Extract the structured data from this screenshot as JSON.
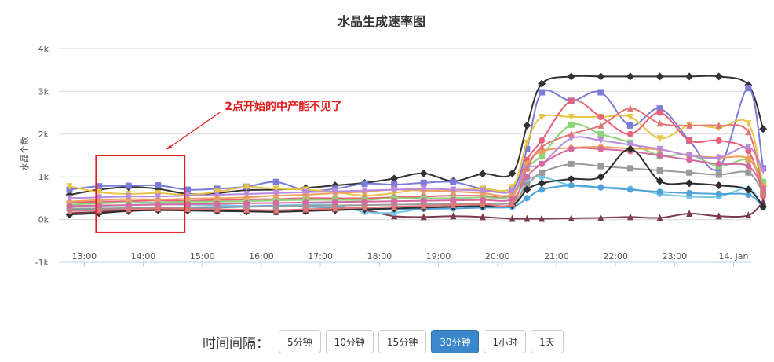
{
  "chart_data": {
    "type": "line",
    "title": "水晶生成速率图",
    "ylabel": "水晶个数",
    "xlabel": "",
    "ylim": [
      -1000,
      4000
    ],
    "y_ticks": [
      -1000,
      0,
      1000,
      2000,
      3000,
      4000
    ],
    "y_tick_labels": [
      "-1k",
      "0k",
      "1k",
      "2k",
      "3k",
      "4k"
    ],
    "x_tick_labels": [
      "13:00",
      "14:00",
      "15:00",
      "16:00",
      "17:00",
      "18:00",
      "19:00",
      "20:00",
      "21:00",
      "22:00",
      "23:00",
      "14. Jan"
    ],
    "x_tick_hours": [
      13,
      14,
      15,
      16,
      17,
      18,
      19,
      20,
      21,
      22,
      23,
      24
    ],
    "grid": true,
    "legend": "none",
    "x": [
      12.75,
      13.25,
      13.75,
      14.25,
      14.75,
      15.25,
      15.75,
      16.25,
      16.75,
      17.25,
      17.75,
      18.25,
      18.75,
      19.25,
      19.75,
      20.25,
      20.5,
      20.75,
      21.25,
      21.75,
      22.25,
      22.75,
      23.25,
      23.75,
      24.25,
      24.5
    ],
    "series": [
      {
        "color": "#333333",
        "marker": "diamond",
        "values": [
          580,
          700,
          760,
          720,
          600,
          620,
          690,
          700,
          740,
          800,
          860,
          960,
          1080,
          900,
          1070,
          1080,
          2200,
          3180,
          3350,
          3350,
          3350,
          3350,
          3350,
          3350,
          3150,
          2120
        ]
      },
      {
        "color": "#7b7bd8",
        "marker": "square",
        "values": [
          700,
          780,
          790,
          800,
          700,
          720,
          770,
          880,
          680,
          720,
          840,
          820,
          860,
          880,
          720,
          700,
          1650,
          2980,
          2780,
          2980,
          2200,
          2600,
          1850,
          1200,
          3080,
          1200
        ]
      },
      {
        "color": "#7c3a4e",
        "marker": "triangle",
        "values": [
          150,
          180,
          230,
          240,
          240,
          220,
          200,
          180,
          210,
          250,
          220,
          80,
          60,
          80,
          60,
          20,
          20,
          20,
          30,
          40,
          60,
          40,
          140,
          80,
          100,
          420
        ]
      },
      {
        "color": "#e8c547",
        "marker": "triangle-down",
        "values": [
          780,
          640,
          600,
          620,
          580,
          650,
          760,
          720,
          700,
          640,
          560,
          620,
          720,
          700,
          720,
          760,
          1800,
          2400,
          2400,
          2400,
          2400,
          1900,
          2200,
          2150,
          2250,
          780
        ]
      },
      {
        "color": "#e86179",
        "marker": "circle",
        "values": [
          400,
          420,
          430,
          450,
          440,
          460,
          470,
          480,
          500,
          500,
          500,
          520,
          540,
          560,
          560,
          580,
          1400,
          1850,
          2780,
          2400,
          2000,
          2500,
          1850,
          1850,
          1600,
          550
        ]
      },
      {
        "color": "#8bd47a",
        "marker": "square",
        "values": [
          350,
          380,
          400,
          400,
          420,
          420,
          430,
          450,
          460,
          460,
          460,
          500,
          500,
          500,
          520,
          560,
          1200,
          1500,
          2220,
          2000,
          1800,
          1500,
          1520,
          1250,
          1400,
          880
        ]
      },
      {
        "color": "#77c7e8",
        "marker": "circle",
        "values": [
          300,
          320,
          340,
          360,
          350,
          340,
          320,
          330,
          350,
          340,
          180,
          160,
          260,
          300,
          320,
          320,
          900,
          1000,
          800,
          760,
          720,
          600,
          540,
          540,
          720,
          280
        ]
      },
      {
        "color": "#f0a05a",
        "marker": "diamond",
        "values": [
          420,
          460,
          480,
          470,
          490,
          500,
          520,
          560,
          580,
          620,
          650,
          700,
          680,
          660,
          620,
          600,
          1300,
          1600,
          1680,
          1700,
          1660,
          1640,
          1500,
          1450,
          1420,
          780
        ]
      },
      {
        "color": "#4fa3d9",
        "marker": "circle",
        "values": [
          220,
          240,
          250,
          260,
          260,
          280,
          300,
          320,
          300,
          280,
          260,
          240,
          250,
          260,
          280,
          300,
          500,
          700,
          800,
          750,
          700,
          650,
          620,
          600,
          580,
          300
        ]
      },
      {
        "color": "#b98ae0",
        "marker": "triangle-down",
        "values": [
          500,
          520,
          540,
          540,
          560,
          580,
          600,
          620,
          640,
          660,
          680,
          700,
          720,
          700,
          680,
          660,
          1200,
          1300,
          1900,
          1850,
          1750,
          1650,
          1500,
          1450,
          1700,
          1150
        ]
      },
      {
        "color": "#9a9a9a",
        "marker": "square",
        "values": [
          260,
          260,
          270,
          280,
          290,
          300,
          300,
          310,
          320,
          330,
          340,
          350,
          360,
          370,
          380,
          400,
          800,
          1100,
          1300,
          1250,
          1200,
          1150,
          1100,
          1050,
          1100,
          620
        ]
      },
      {
        "color": "#d46aa0",
        "marker": "circle",
        "values": [
          320,
          330,
          340,
          350,
          360,
          370,
          380,
          390,
          400,
          410,
          420,
          430,
          440,
          450,
          460,
          480,
          1000,
          1300,
          1650,
          1650,
          1600,
          1500,
          1400,
          1300,
          1250,
          720
        ]
      },
      {
        "color": "#2e2e2e",
        "marker": "diamond",
        "values": [
          120,
          150,
          200,
          220,
          210,
          200,
          190,
          180,
          200,
          220,
          240,
          260,
          280,
          300,
          320,
          340,
          700,
          850,
          950,
          1000,
          1650,
          900,
          850,
          800,
          700,
          300
        ]
      },
      {
        "color": "#e37676",
        "marker": "triangle",
        "values": [
          200,
          220,
          240,
          260,
          250,
          240,
          230,
          220,
          240,
          260,
          280,
          300,
          320,
          340,
          360,
          380,
          1200,
          1700,
          2000,
          2200,
          2600,
          2250,
          2200,
          2200,
          2050,
          600
        ]
      }
    ],
    "annotation_text": "2点开始的中产能不见了",
    "highlight_range": {
      "x_from": 13.2,
      "x_to": 14.7,
      "y_from": -300,
      "y_to": 1500
    }
  },
  "interval": {
    "label": "时间间隔：",
    "buttons": [
      "5分钟",
      "10分钟",
      "15分钟",
      "30分钟",
      "1小时",
      "1天"
    ],
    "active_index": 3
  },
  "colors": {
    "annotation": "#e02020",
    "active_button": "#3a87cc"
  }
}
